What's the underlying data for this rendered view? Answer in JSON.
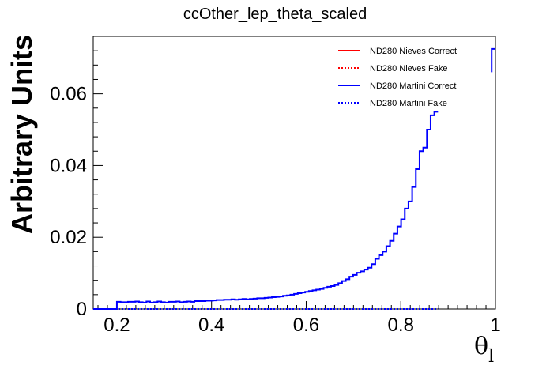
{
  "chart_data": {
    "type": "line",
    "title": "ccOther_lep_theta_scaled",
    "xlabel": "θ",
    "xlabel_subscript": "l",
    "ylabel": "Arbitrary Units",
    "xlim": [
      0.15,
      1.0
    ],
    "ylim": [
      0,
      0.076
    ],
    "x_ticks": [
      0.2,
      0.4,
      0.6,
      0.8,
      1.0
    ],
    "x_tick_labels": [
      "0.2",
      "0.4",
      "0.6",
      "0.8",
      "1"
    ],
    "y_ticks": [
      0,
      0.02,
      0.04,
      0.06
    ],
    "y_tick_labels": [
      "0",
      "0.02",
      "0.04",
      "0.06"
    ],
    "grid": false,
    "legend_position": "top-right",
    "legend": [
      {
        "label": "ND280 Nieves Correct",
        "color": "#ff0000",
        "dash": "solid"
      },
      {
        "label": "ND280 Nieves Fake",
        "color": "#ff0000",
        "dash": "dotted"
      },
      {
        "label": "ND280 Martini Correct",
        "color": "#0000ff",
        "dash": "solid"
      },
      {
        "label": "ND280 Martini Fake",
        "color": "#0000ff",
        "dash": "dotted"
      }
    ],
    "bin_start": 0.2,
    "bin_width": 0.0078,
    "series": [
      {
        "name": "ND280 Martini Correct",
        "color": "#0000ff",
        "dash": "solid",
        "values": [
          0.002,
          0.0019,
          0.0019,
          0.002,
          0.002,
          0.0021,
          0.0019,
          0.0018,
          0.0021,
          0.0018,
          0.0019,
          0.0021,
          0.0019,
          0.0018,
          0.002,
          0.002,
          0.0021,
          0.0019,
          0.002,
          0.0021,
          0.002,
          0.0022,
          0.0022,
          0.0022,
          0.0023,
          0.0023,
          0.0024,
          0.0025,
          0.0025,
          0.0026,
          0.0026,
          0.0027,
          0.0026,
          0.0027,
          0.0028,
          0.0027,
          0.0028,
          0.0029,
          0.003,
          0.003,
          0.0031,
          0.0032,
          0.0033,
          0.0034,
          0.0035,
          0.0037,
          0.0038,
          0.004,
          0.0042,
          0.0044,
          0.0046,
          0.0048,
          0.005,
          0.0052,
          0.0054,
          0.0056,
          0.0059,
          0.0062,
          0.0064,
          0.0067,
          0.0072,
          0.0078,
          0.0083,
          0.009,
          0.0095,
          0.0101,
          0.0105,
          0.011,
          0.0115,
          0.0125,
          0.014,
          0.015,
          0.016,
          0.0175,
          0.019,
          0.021,
          0.023,
          0.025,
          0.028,
          0.03,
          0.034,
          0.039,
          0.044,
          0.045,
          0.05,
          0.054,
          0.055
        ]
      },
      {
        "name": "ND280 Martini Fake",
        "color": "#0000ff",
        "dash": "dotted",
        "values": [
          0,
          0,
          0,
          0,
          0,
          0,
          0,
          0,
          0,
          0,
          0,
          0,
          0,
          0,
          0,
          0,
          0,
          0,
          0,
          0,
          0,
          0,
          0,
          0,
          0,
          0,
          0,
          0,
          0,
          0,
          0,
          0,
          0,
          0,
          0,
          0,
          0,
          0,
          0,
          0,
          0,
          0,
          0,
          0,
          0,
          0,
          0,
          0,
          0,
          0,
          0,
          0,
          0,
          0,
          0,
          0,
          0,
          0,
          0,
          0,
          0,
          0,
          0,
          0,
          0,
          0,
          0,
          0,
          0,
          0,
          0,
          0,
          0,
          0,
          0,
          0,
          0,
          0,
          0,
          0,
          0,
          0,
          0,
          0,
          0,
          0,
          0
        ]
      }
    ],
    "tail": {
      "x": [
        0.992,
        1.0
      ],
      "values": [
        0.0725
      ]
    }
  }
}
